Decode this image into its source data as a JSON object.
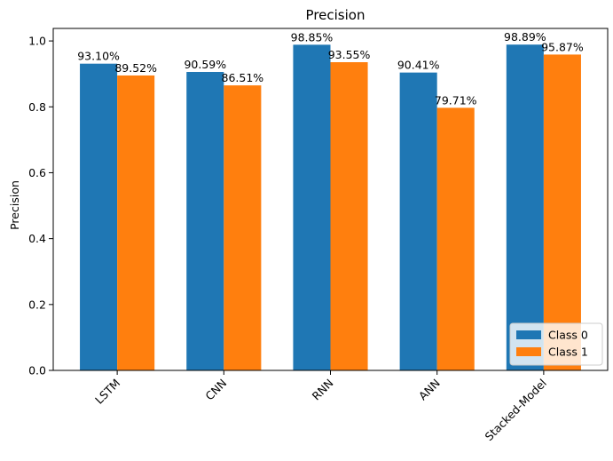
{
  "chart_data": {
    "type": "bar",
    "title": "Precision",
    "xlabel": "",
    "ylabel": "Precision",
    "categories": [
      "LSTM",
      "CNN",
      "RNN",
      "ANN",
      "Stacked-Model"
    ],
    "series": [
      {
        "name": "Class 0",
        "color": "#1f77b4",
        "values": [
          0.931,
          0.9059,
          0.9885,
          0.9041,
          0.9889
        ],
        "labels": [
          "93.10%",
          "90.59%",
          "98.85%",
          "90.41%",
          "98.89%"
        ]
      },
      {
        "name": "Class 1",
        "color": "#ff7f0e",
        "values": [
          0.8952,
          0.8651,
          0.9355,
          0.7971,
          0.9587
        ],
        "labels": [
          "89.52%",
          "86.51%",
          "93.55%",
          "79.71%",
          "95.87%"
        ]
      }
    ],
    "ylim": [
      0,
      1.038
    ],
    "yticks": [
      0.0,
      0.2,
      0.4,
      0.6,
      0.8,
      1.0
    ],
    "ytick_labels": [
      "0.0",
      "0.2",
      "0.4",
      "0.6",
      "0.8",
      "1.0"
    ],
    "grid": false,
    "legend_position": "lower-right",
    "xtick_rotation": "45"
  }
}
